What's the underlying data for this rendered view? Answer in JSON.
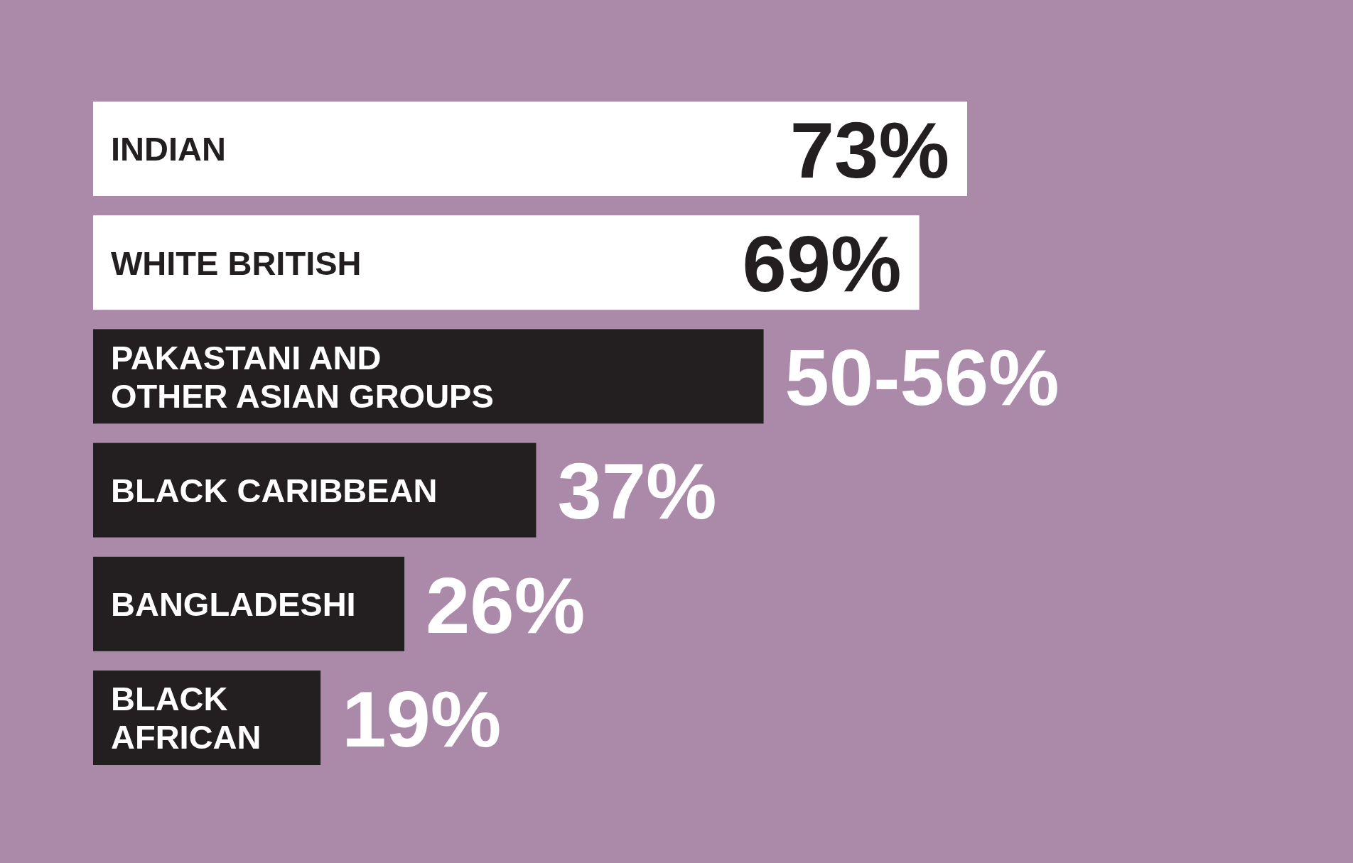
{
  "chart_data": {
    "type": "bar",
    "orientation": "horizontal",
    "categories": [
      "INDIAN",
      "WHITE BRITISH",
      "PAKASTANI AND OTHER ASIAN GROUPS",
      "BLACK CARIBBEAN",
      "BANGLADESHI",
      "BLACK AFRICAN"
    ],
    "values": [
      73,
      69,
      56,
      37,
      26,
      19
    ],
    "colors": [
      "#ffffff",
      "#ffffff",
      "#231f20",
      "#231f20",
      "#231f20",
      "#231f20"
    ],
    "value_labels": [
      "73%",
      "69%",
      null,
      "37%",
      "26%",
      "19%"
    ],
    "annotations": [
      {
        "text": "50-56%",
        "x": 56,
        "y": "PAKASTANI AND OTHER ASIAN GROUPS"
      }
    ]
  }
}
